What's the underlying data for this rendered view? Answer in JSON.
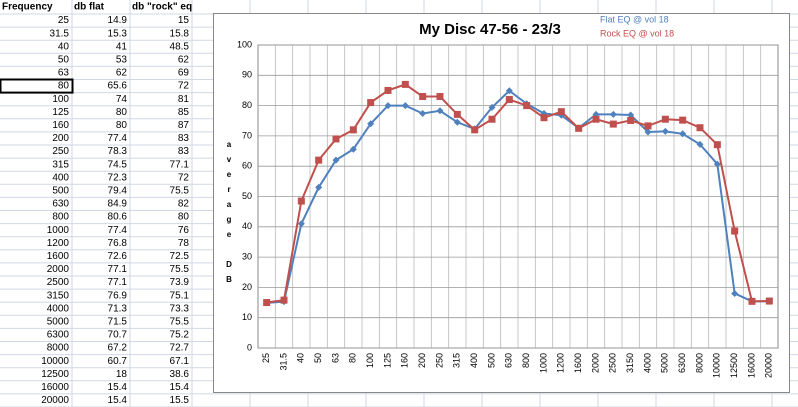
{
  "table": {
    "header": [
      "Frequency",
      "db flat",
      "db \"rock\" eq"
    ],
    "rows": [
      [
        "25",
        "14.9",
        "15"
      ],
      [
        "31.5",
        "15.3",
        "15.8"
      ],
      [
        "40",
        "41",
        "48.5"
      ],
      [
        "50",
        "53",
        "62"
      ],
      [
        "63",
        "62",
        "69"
      ],
      [
        "80",
        "65.6",
        "72"
      ],
      [
        "100",
        "74",
        "81"
      ],
      [
        "125",
        "80",
        "85"
      ],
      [
        "160",
        "80",
        "87"
      ],
      [
        "200",
        "77.4",
        "83"
      ],
      [
        "250",
        "78.3",
        "83"
      ],
      [
        "315",
        "74.5",
        "77.1"
      ],
      [
        "400",
        "72.3",
        "72"
      ],
      [
        "500",
        "79.4",
        "75.5"
      ],
      [
        "630",
        "84.9",
        "82"
      ],
      [
        "800",
        "80.6",
        "80"
      ],
      [
        "1000",
        "77.4",
        "76"
      ],
      [
        "1200",
        "76.8",
        "78"
      ],
      [
        "1600",
        "72.6",
        "72.5"
      ],
      [
        "2000",
        "77.1",
        "75.5"
      ],
      [
        "2500",
        "77.1",
        "73.9"
      ],
      [
        "3150",
        "76.9",
        "75.1"
      ],
      [
        "4000",
        "71.3",
        "73.3"
      ],
      [
        "5000",
        "71.5",
        "75.5"
      ],
      [
        "6300",
        "70.7",
        "75.2"
      ],
      [
        "8000",
        "67.2",
        "72.7"
      ],
      [
        "10000",
        "60.7",
        "67.1"
      ],
      [
        "12500",
        "18",
        "38.6"
      ],
      [
        "16000",
        "15.4",
        "15.4"
      ],
      [
        "20000",
        "15.4",
        "15.5"
      ]
    ]
  },
  "chart_data": {
    "type": "line",
    "title": "My Disc 47-56 -  23/3",
    "y_label": "average DB",
    "categories": [
      "25",
      "31.5",
      "40",
      "50",
      "63",
      "80",
      "100",
      "125",
      "160",
      "200",
      "250",
      "315",
      "400",
      "500",
      "630",
      "800",
      "1000",
      "1200",
      "1600",
      "2000",
      "2500",
      "3150",
      "4000",
      "5000",
      "6300",
      "8000",
      "10000",
      "12500",
      "16000",
      "20000"
    ],
    "series": [
      {
        "name": "Flat EQ @ vol 18",
        "color": "#4f81bd",
        "marker": "diamond",
        "values": [
          14.9,
          15.3,
          41,
          53,
          62,
          65.6,
          74,
          80,
          80,
          77.4,
          78.3,
          74.5,
          72.3,
          79.4,
          84.9,
          80.6,
          77.4,
          76.8,
          72.6,
          77.1,
          77.1,
          76.9,
          71.3,
          71.5,
          70.7,
          67.2,
          60.7,
          18,
          15.4,
          15.4
        ]
      },
      {
        "name": "Rock EQ @ vol 18",
        "color": "#c0504d",
        "marker": "square",
        "values": [
          15,
          15.8,
          48.5,
          62,
          69,
          72,
          81,
          85,
          87,
          83,
          83,
          77.1,
          72,
          75.5,
          82,
          80,
          76,
          78,
          72.5,
          75.5,
          73.9,
          75.1,
          73.3,
          75.5,
          75.2,
          72.7,
          67.1,
          38.6,
          15.4,
          15.5
        ]
      }
    ],
    "ylim": [
      0,
      100
    ],
    "yticks": [
      0,
      10,
      20,
      30,
      40,
      50,
      60,
      70,
      80,
      90,
      100
    ],
    "grid": true
  }
}
